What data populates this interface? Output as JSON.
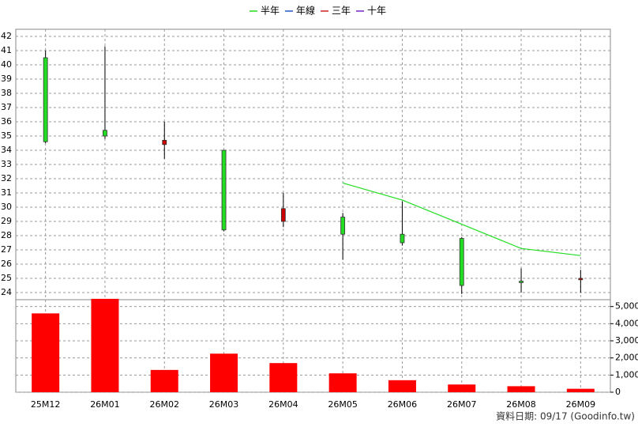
{
  "chart_data": [
    {
      "type": "candlestick",
      "ohlc": {
        "open": [
          40.5,
          35.4,
          34.4,
          34.0,
          29.0,
          29.3,
          28.1,
          27.8,
          24.8,
          24.9
        ],
        "high": [
          41.0,
          41.3,
          36.0,
          34.0,
          31.0,
          29.6,
          30.4,
          27.9,
          25.7,
          25.6
        ],
        "low": [
          34.5,
          34.8,
          33.4,
          28.3,
          28.6,
          26.3,
          27.3,
          23.9,
          24.0,
          24.0
        ],
        "close": [
          34.6,
          35.0,
          34.7,
          28.4,
          29.9,
          28.1,
          27.5,
          24.5,
          24.7,
          25.0
        ]
      },
      "up_color": "#cc0000",
      "down_color": "#22dd22",
      "series": [
        {
          "name": "半年",
          "color": "#22dd22",
          "values": [
            null,
            null,
            null,
            null,
            null,
            31.7,
            30.5,
            28.8,
            27.1,
            26.6
          ]
        },
        {
          "name": "年線",
          "color": "#2255cc",
          "values": [
            null,
            null,
            null,
            null,
            null,
            null,
            null,
            null,
            null,
            null
          ]
        },
        {
          "name": "三年",
          "color": "#cc2222",
          "values": [
            null,
            null,
            null,
            null,
            null,
            null,
            null,
            null,
            null,
            null
          ]
        },
        {
          "name": "十年",
          "color": "#7722cc",
          "values": [
            null,
            null,
            null,
            null,
            null,
            null,
            null,
            null,
            null,
            null
          ]
        }
      ],
      "ylim": [
        23.5,
        42.5
      ],
      "yticks": [
        24,
        25,
        26,
        27,
        28,
        29,
        30,
        31,
        32,
        33,
        34,
        35,
        36,
        37,
        38,
        39,
        40,
        41,
        42
      ],
      "grid": true
    },
    {
      "type": "bar",
      "categories": [
        "25M12",
        "26M01",
        "26M02",
        "26M03",
        "26M04",
        "26M05",
        "26M06",
        "26M07",
        "26M08",
        "26M09"
      ],
      "values": [
        4600,
        5450,
        1300,
        2250,
        1700,
        1100,
        700,
        450,
        350,
        200
      ],
      "color": "#ff0000",
      "ylim": [
        0,
        5400
      ],
      "yticks": [
        0,
        {
          "value": 1000,
          "label": "1,000"
        },
        {
          "value": 2000,
          "label": "2,000"
        },
        {
          "value": 3000,
          "label": "3,000"
        },
        {
          "value": 4000,
          "label": "4,000"
        },
        {
          "value": 5000,
          "label": "5,000"
        }
      ],
      "grid": true
    }
  ],
  "footer": "資料日期: 09/17 (Goodinfo.tw)"
}
